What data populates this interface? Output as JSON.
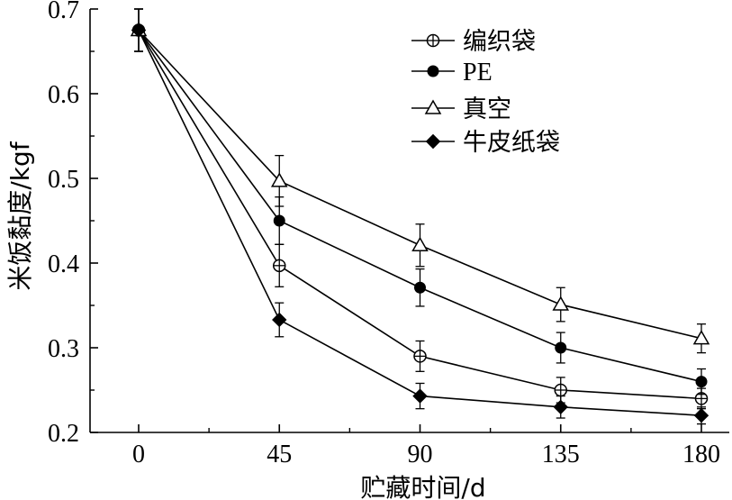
{
  "chart_data": {
    "type": "line",
    "title": "",
    "xlabel": "贮藏时间/d",
    "ylabel": "米饭黏度/kgf",
    "x": [
      0,
      45,
      90,
      135,
      180
    ],
    "x_tick_labels": [
      "0",
      "45",
      "90",
      "135",
      "180"
    ],
    "xlim": [
      0,
      180
    ],
    "ylim": [
      0.2,
      0.7
    ],
    "y_tick_labels": [
      "0.2",
      "0.3",
      "0.4",
      "0.5",
      "0.6",
      "0.7"
    ],
    "grid": false,
    "legend_position": "top-right",
    "series": [
      {
        "name": "编织袋",
        "marker": "circle-plus",
        "values": [
          0.675,
          0.397,
          0.29,
          0.25,
          0.24
        ],
        "errors": [
          0.025,
          0.025,
          0.018,
          0.015,
          0.012
        ]
      },
      {
        "name": "PE",
        "marker": "filled-circle",
        "values": [
          0.675,
          0.45,
          0.371,
          0.3,
          0.26
        ],
        "errors": [
          0.025,
          0.028,
          0.022,
          0.018,
          0.015
        ]
      },
      {
        "name": "真空",
        "marker": "open-triangle",
        "values": [
          0.675,
          0.497,
          0.421,
          0.351,
          0.311
        ],
        "errors": [
          0.025,
          0.03,
          0.025,
          0.02,
          0.017
        ]
      },
      {
        "name": "牛皮纸袋",
        "marker": "filled-diamond",
        "values": [
          0.675,
          0.333,
          0.243,
          0.23,
          0.22
        ],
        "errors": [
          0.025,
          0.02,
          0.015,
          0.013,
          0.01
        ]
      }
    ]
  }
}
